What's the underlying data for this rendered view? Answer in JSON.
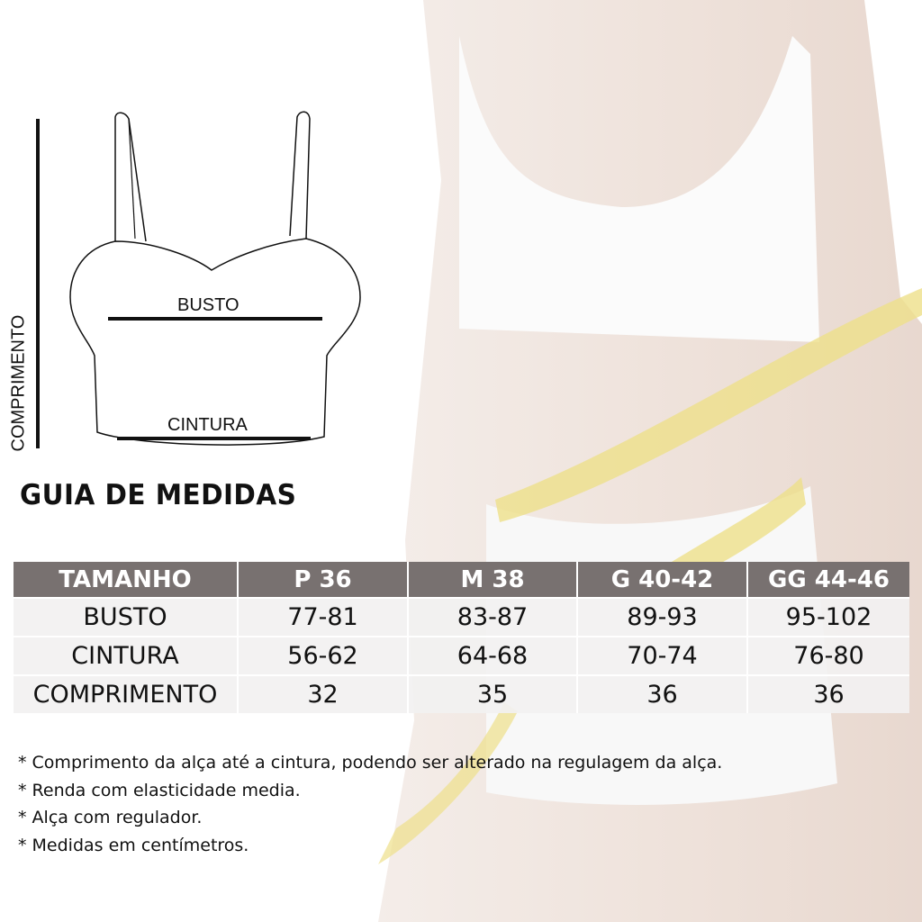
{
  "sketch": {
    "length_label": "COMPRIMENTO",
    "bust_label": "BUSTO",
    "waist_label": "CINTURA"
  },
  "title": "GUIA DE MEDIDAS",
  "table": {
    "headers": [
      "TAMANHO",
      "P 36",
      "M 38",
      "G 40-42",
      "GG 44-46"
    ],
    "rows": [
      [
        "BUSTO",
        "77-81",
        "83-87",
        "89-93",
        "95-102"
      ],
      [
        "CINTURA",
        "56-62",
        "64-68",
        "70-74",
        "76-80"
      ],
      [
        "COMPRIMENTO",
        "32",
        "35",
        "36",
        "36"
      ]
    ]
  },
  "notes": [
    "* Comprimento da alça até a cintura, podendo ser alterado na regulagem da alça.",
    "* Renda com elasticidade media.",
    "* Alça com regulador.",
    "* Medidas em centímetros."
  ],
  "colors": {
    "header": "#787170",
    "row": "#f2f1f1",
    "tape": "#eee08a"
  }
}
